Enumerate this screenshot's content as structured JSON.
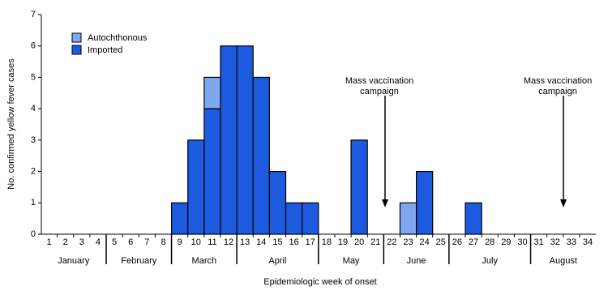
{
  "chart_data": {
    "type": "stacked-bar",
    "x_label": "Epidemiologic week of onset",
    "y_label": "No. confirmed yellow fever cases",
    "categories": [
      "1",
      "2",
      "3",
      "4",
      "5",
      "6",
      "7",
      "8",
      "9",
      "10",
      "11",
      "12",
      "13",
      "14",
      "15",
      "16",
      "17",
      "18",
      "19",
      "20",
      "21",
      "22",
      "23",
      "24",
      "25",
      "26",
      "27",
      "28",
      "29",
      "30",
      "31",
      "32",
      "33",
      "34"
    ],
    "months": [
      "January",
      "February",
      "March",
      "April",
      "May",
      "June",
      "July",
      "August"
    ],
    "series": [
      {
        "name": "Autochthonous",
        "color": "#7fa6ef",
        "values": [
          0,
          0,
          0,
          0,
          0,
          0,
          0,
          0,
          0,
          0,
          1,
          0,
          0,
          0,
          0,
          0,
          0,
          0,
          0,
          0,
          0,
          0,
          1,
          0,
          0,
          0,
          0,
          0,
          0,
          0,
          0,
          0,
          0,
          0
        ]
      },
      {
        "name": "Imported",
        "color": "#1c5ae0",
        "values": [
          0,
          0,
          0,
          0,
          0,
          0,
          0,
          0,
          1,
          3,
          4,
          6,
          6,
          5,
          2,
          1,
          1,
          0,
          0,
          3,
          0,
          0,
          0,
          2,
          0,
          0,
          1,
          0,
          0,
          0,
          0,
          0,
          0,
          0
        ]
      }
    ],
    "ylim": [
      0,
      7
    ],
    "yticks": [
      0,
      1,
      2,
      3,
      4,
      5,
      6,
      7
    ],
    "annotations": [
      "Mass vaccination campaign",
      "Mass vaccination campaign"
    ]
  }
}
